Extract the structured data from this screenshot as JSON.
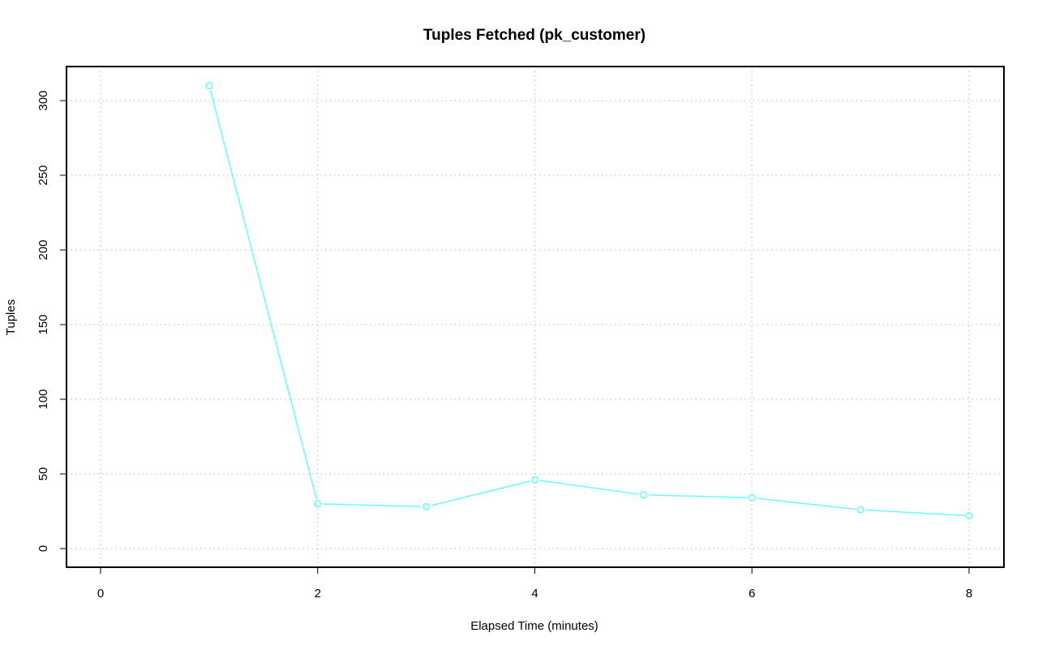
{
  "chart_data": {
    "type": "line",
    "title": "Tuples Fetched (pk_customer)",
    "xlabel": "Elapsed Time (minutes)",
    "ylabel": "Tuples",
    "xlim": [
      0,
      8
    ],
    "ylim": [
      0,
      310
    ],
    "x_ticks": [
      "0",
      "2",
      "4",
      "6",
      "8"
    ],
    "y_ticks": [
      "0",
      "50",
      "100",
      "150",
      "200",
      "250",
      "300"
    ],
    "grid": true,
    "legend": false,
    "series": [
      {
        "color": "#66ffff",
        "marker": "open-circle",
        "x": [
          1,
          2,
          3,
          4,
          5,
          6,
          7,
          8
        ],
        "y": [
          310,
          30,
          28,
          46,
          36,
          34,
          26,
          22
        ]
      }
    ]
  }
}
